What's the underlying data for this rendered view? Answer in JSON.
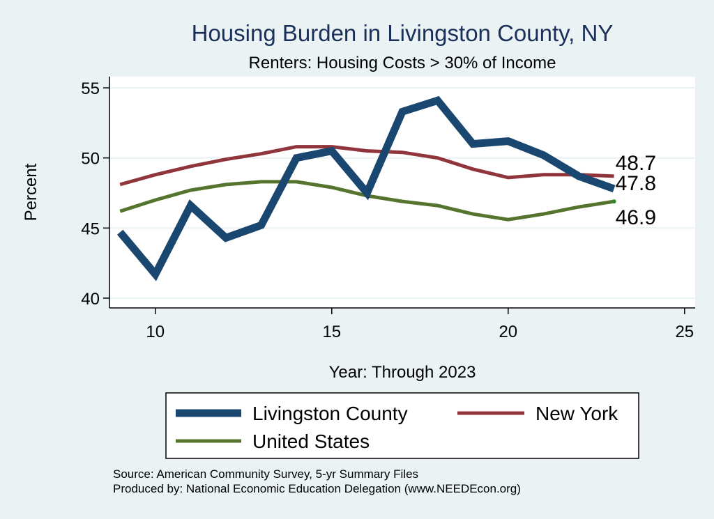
{
  "chart_data": {
    "type": "line",
    "title": "Housing Burden in Livingston County, NY",
    "subtitle": "Renters: Housing Costs > 30% of Income",
    "xlabel": "Year: Through 2023",
    "ylabel": "Percent",
    "xlim": [
      8.7,
      25.3
    ],
    "ylim": [
      39.3,
      55.8
    ],
    "xticks": [
      10,
      15,
      20,
      25
    ],
    "yticks": [
      40,
      45,
      50,
      55
    ],
    "grid": true,
    "legend_position": "bottom",
    "series": [
      {
        "name": "Livingston County",
        "color": "#1a476f",
        "x": [
          9,
          10,
          11,
          12,
          13,
          14,
          15,
          16,
          17,
          18,
          19,
          20,
          21,
          22,
          23
        ],
        "values": [
          44.7,
          41.7,
          46.6,
          44.3,
          45.2,
          50.0,
          50.5,
          47.5,
          53.3,
          54.1,
          51.0,
          51.2,
          50.2,
          48.7,
          47.8
        ],
        "end_label": "47.8"
      },
      {
        "name": "New York",
        "color": "#90353b",
        "x": [
          9,
          10,
          11,
          12,
          13,
          14,
          15,
          16,
          17,
          18,
          19,
          20,
          21,
          22,
          23
        ],
        "values": [
          48.1,
          48.8,
          49.4,
          49.9,
          50.3,
          50.8,
          50.8,
          50.5,
          50.4,
          50.0,
          49.2,
          48.6,
          48.8,
          48.8,
          48.7
        ],
        "end_label": "48.7"
      },
      {
        "name": "United States",
        "color": "#55752f",
        "x": [
          9,
          10,
          11,
          12,
          13,
          14,
          15,
          16,
          17,
          18,
          19,
          20,
          21,
          22,
          23
        ],
        "values": [
          46.2,
          47.0,
          47.7,
          48.1,
          48.3,
          48.3,
          47.9,
          47.3,
          46.9,
          46.6,
          46.0,
          45.6,
          46.0,
          46.5,
          46.9
        ],
        "end_label": "46.9"
      }
    ]
  },
  "source_note": "Source: American Community Survey, 5-yr Summary Files",
  "producer_note": "Produced by: National Economic Education Delegation (www.NEEDEcon.org)"
}
